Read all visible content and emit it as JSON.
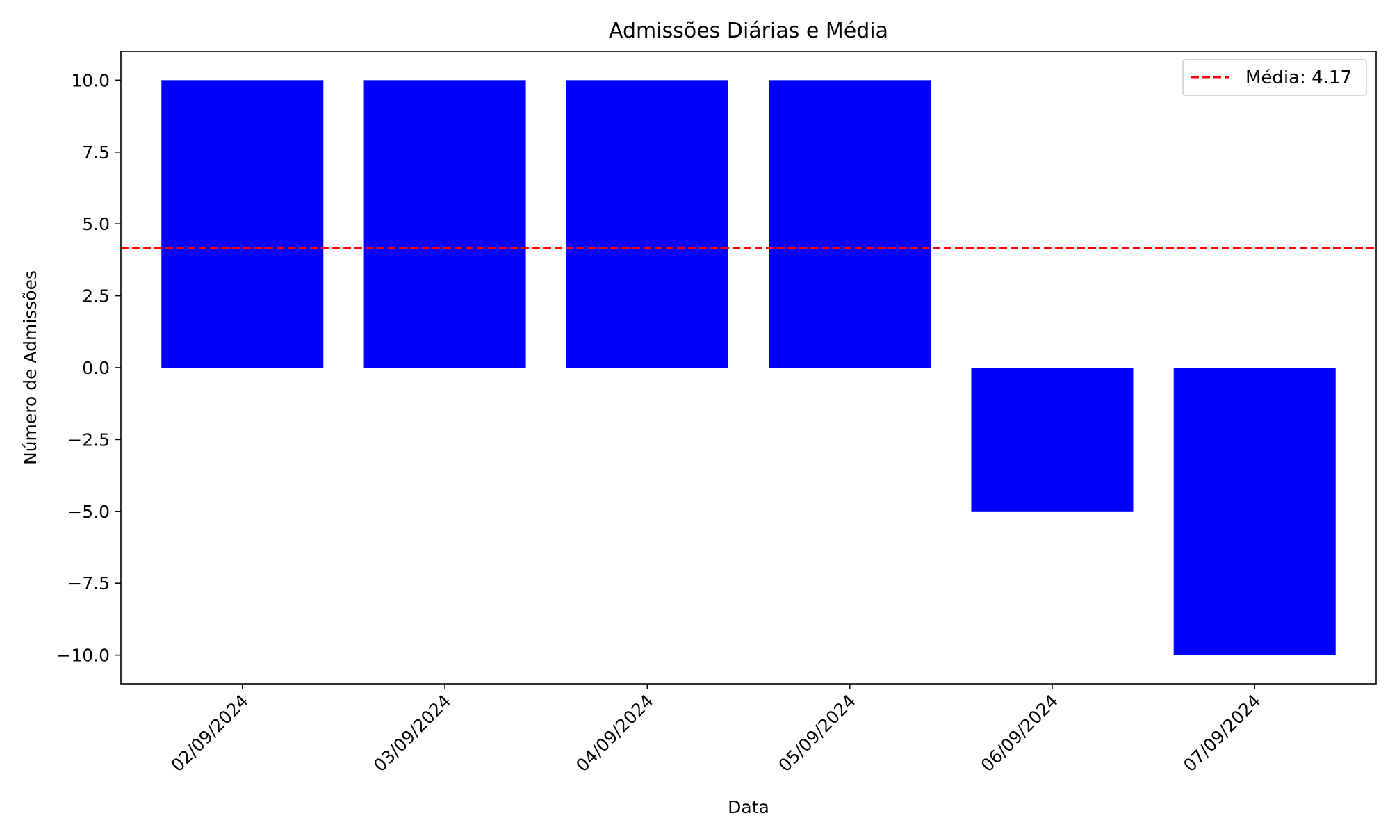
{
  "chart_data": {
    "type": "bar",
    "title": "Admissões Diárias e Média",
    "xlabel": "Data",
    "ylabel": "Número de Admissões",
    "categories": [
      "02/09/2024",
      "03/09/2024",
      "04/09/2024",
      "05/09/2024",
      "06/09/2024",
      "07/09/2024"
    ],
    "values": [
      10,
      10,
      10,
      10,
      -5,
      -10
    ],
    "ylim": [
      -11,
      11
    ],
    "yticks": [
      -10.0,
      -7.5,
      -5.0,
      -2.5,
      0.0,
      2.5,
      5.0,
      7.5,
      10.0
    ],
    "ytick_labels": [
      "−10.0",
      "−7.5",
      "−5.0",
      "−2.5",
      "0.0",
      "2.5",
      "5.0",
      "7.5",
      "10.0"
    ],
    "mean": {
      "value": 4.17,
      "label": "Média: 4.17",
      "color": "#ff0000",
      "style": "dashed"
    },
    "bar_color": "#0000ff",
    "grid": false,
    "legend_placement": "top-right"
  }
}
